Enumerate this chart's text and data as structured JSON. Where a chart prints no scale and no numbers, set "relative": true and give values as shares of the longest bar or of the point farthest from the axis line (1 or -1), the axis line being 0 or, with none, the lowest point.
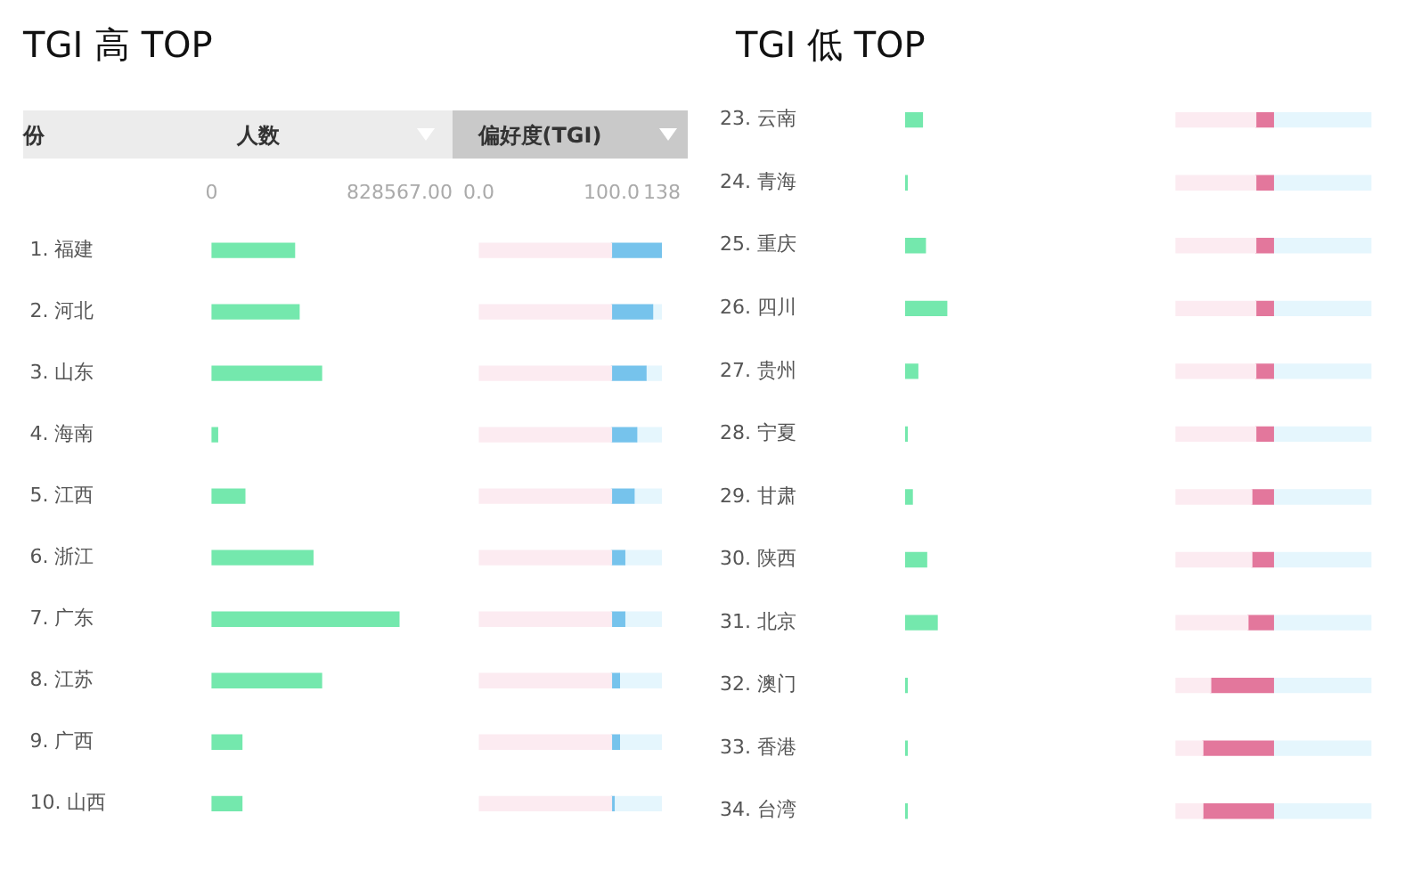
{
  "chart_data": [
    {
      "type": "bar",
      "orientation": "horizontal",
      "title": "TGI 高 TOP",
      "ylabel": "份",
      "xlabel": "人数",
      "categories": [
        "1. 福建",
        "2. 河北",
        "3. 山东",
        "4. 海南",
        "5. 江西",
        "6. 浙江",
        "7. 广东",
        "8. 江苏",
        "9. 广西",
        "10. 山西"
      ],
      "values": [
        366000,
        386000,
        485000,
        27000,
        147000,
        447000,
        828567,
        485000,
        134000,
        134000
      ],
      "color": "#74e8ad",
      "xlim": [
        0,
        828567
      ],
      "xticks": [
        0,
        {
          "value": 828567,
          "label": "828567.00"
        }
      ]
    },
    {
      "type": "bar",
      "orientation": "horizontal",
      "xlabel": "偏好度(TGI)",
      "stacked": true,
      "categories": [
        null,
        null,
        null,
        null,
        null,
        null,
        null,
        null,
        null,
        null
      ],
      "series": [
        {
          "color": "#fcebf1",
          "values": [
            100,
            100,
            100,
            100,
            100,
            100,
            100,
            100,
            100,
            100
          ]
        },
        {
          "color": "#76c3ec",
          "values": [
            38,
            31,
            26,
            19,
            17,
            10,
            10,
            6,
            6,
            2
          ]
        },
        {
          "color": "#e5f6fd",
          "values": [
            0,
            7,
            12,
            19,
            21,
            28,
            28,
            32,
            32,
            36
          ]
        }
      ],
      "xlim": [
        0,
        138
      ],
      "xticks": [
        {
          "value": 0,
          "label": "0.0"
        },
        {
          "value": 100,
          "label": "100.0"
        },
        138
      ]
    },
    {
      "type": "bar",
      "orientation": "horizontal",
      "title": "TGI 低 TOP",
      "relative": true,
      "categories": [
        "23. 云南",
        "24. 青海",
        "25. 重庆",
        "26. 四川",
        "27. 贵州",
        "28. 宁夏",
        "29. 甘肃",
        "30. 陕西",
        "31. 北京",
        "32. 澳门",
        "33. 香港",
        "34. 台湾"
      ],
      "values": [
        0.41,
        0.05,
        0.48,
        1,
        0.3,
        0.05,
        0.17,
        0.51,
        0.76,
        0.05,
        0.05,
        0.05
      ],
      "color": "#74e8ad"
    },
    {
      "type": "bar",
      "orientation": "horizontal",
      "relative": true,
      "stacked": true,
      "categories": [
        null,
        null,
        null,
        null,
        null,
        null,
        null,
        null,
        null,
        null,
        null,
        null
      ],
      "series": [
        {
          "color": "#fcebf1",
          "values": [
            0.41,
            0.41,
            0.41,
            0.41,
            0.41,
            0.41,
            0.39,
            0.39,
            0.37,
            0.18,
            0.14,
            0.14
          ]
        },
        {
          "color": "#e3779c",
          "values": [
            0.09,
            0.09,
            0.09,
            0.09,
            0.09,
            0.09,
            0.11,
            0.11,
            0.13,
            0.32,
            0.36,
            0.36
          ]
        },
        {
          "color": "#e5f6fd",
          "values": [
            0.5,
            0.5,
            0.5,
            0.5,
            0.5,
            0.5,
            0.5,
            0.5,
            0.5,
            0.5,
            0.5,
            0.5
          ]
        }
      ]
    }
  ]
}
